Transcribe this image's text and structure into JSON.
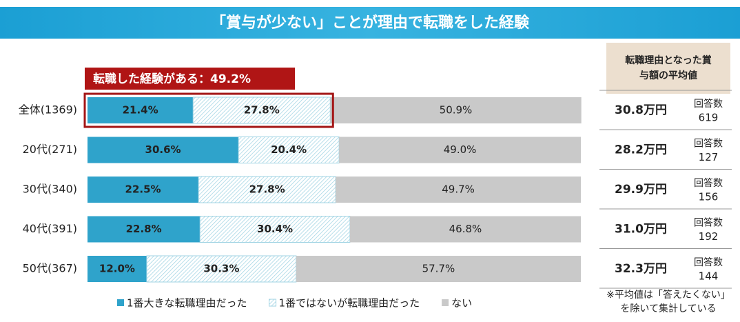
{
  "chart_data": {
    "type": "stacked-bar-horizontal",
    "title": "「賞与が少ない」ことが理由で転職をした経験",
    "annotation": "転職した経験がある：49.2%",
    "categories": [
      "全体(1369)",
      "20代(271)",
      "30代(340)",
      "40代(391)",
      "50代(367)"
    ],
    "series": [
      {
        "name": "1番大きな転職理由だった",
        "color": "#2fa3cb",
        "values": [
          21.4,
          30.6,
          22.5,
          22.8,
          12.0
        ],
        "value_labels": [
          "21.4%",
          "30.6%",
          "22.5%",
          "22.8%",
          "12.0%"
        ]
      },
      {
        "name": "1番ではないが転職理由だった",
        "color": "#9fd3e3",
        "values": [
          27.8,
          20.4,
          27.8,
          30.4,
          30.3
        ],
        "value_labels": [
          "27.8%",
          "20.4%",
          "27.8%",
          "30.4%",
          "30.3%"
        ]
      },
      {
        "name": "ない",
        "color": "#c9c9c9",
        "values": [
          50.9,
          49.0,
          49.7,
          46.8,
          57.7
        ],
        "value_labels": [
          "50.9%",
          "49.0%",
          "49.7%",
          "46.8%",
          "57.7%"
        ]
      }
    ],
    "xlim": [
      0,
      100
    ]
  },
  "side_table": {
    "header": [
      "転職理由となった賞",
      "与額の平均値"
    ],
    "rows": [
      {
        "amount": "30.8万円",
        "count_label": "回答数",
        "count": 619
      },
      {
        "amount": "28.2万円",
        "count_label": "回答数",
        "count": 127
      },
      {
        "amount": "29.9万円",
        "count_label": "回答数",
        "count": 156
      },
      {
        "amount": "31.0万円",
        "count_label": "回答数",
        "count": 192
      },
      {
        "amount": "32.3万円",
        "count_label": "回答数",
        "count": 144
      }
    ]
  },
  "footnote": [
    "※平均値は「答えたくない」",
    "を除いて集計している"
  ]
}
